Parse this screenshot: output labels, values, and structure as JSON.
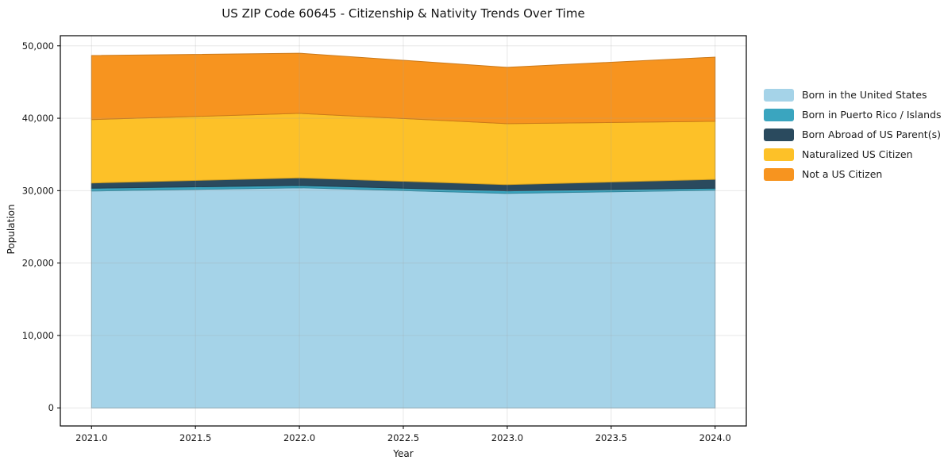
{
  "figure": {
    "title": "US ZIP Code 60645 - Citizenship & Nativity Trends Over Time",
    "xlabel": "Year",
    "ylabel": "Population"
  },
  "chart_data": {
    "type": "area",
    "stacked": true,
    "title": "US ZIP Code 60645 - Citizenship & Nativity Trends Over Time",
    "xlabel": "Year",
    "ylabel": "Population",
    "x": [
      2021,
      2022,
      2023,
      2024
    ],
    "series": [
      {
        "name": "Born in the United States",
        "color": "#a5d3e8",
        "values": [
          29950,
          30400,
          29620,
          30060
        ]
      },
      {
        "name": "Born in Puerto Rico / Islands",
        "color": "#3aa5bf",
        "values": [
          380,
          320,
          350,
          280
        ]
      },
      {
        "name": "Born Abroad of US Parent(s)",
        "color": "#2a4a5e",
        "values": [
          730,
          1040,
          860,
          1220
        ]
      },
      {
        "name": "Naturalized US Citizen",
        "color": "#fdc128",
        "values": [
          8760,
          8910,
          8420,
          8020
        ]
      },
      {
        "name": "Not a US Citizen",
        "color": "#f7941f",
        "values": [
          8840,
          8310,
          7780,
          8860
        ]
      }
    ],
    "totals": [
      48660,
      48980,
      47030,
      48440
    ],
    "xlim": [
      2020.85,
      2024.15
    ],
    "ylim": [
      -2500,
      51400
    ],
    "xticks": [
      2021.0,
      2021.5,
      2022.0,
      2022.5,
      2023.0,
      2023.5,
      2024.0
    ],
    "yticks": [
      0,
      10000,
      20000,
      30000,
      40000,
      50000
    ],
    "grid": true,
    "legend_position": "right of plot, no frame"
  }
}
